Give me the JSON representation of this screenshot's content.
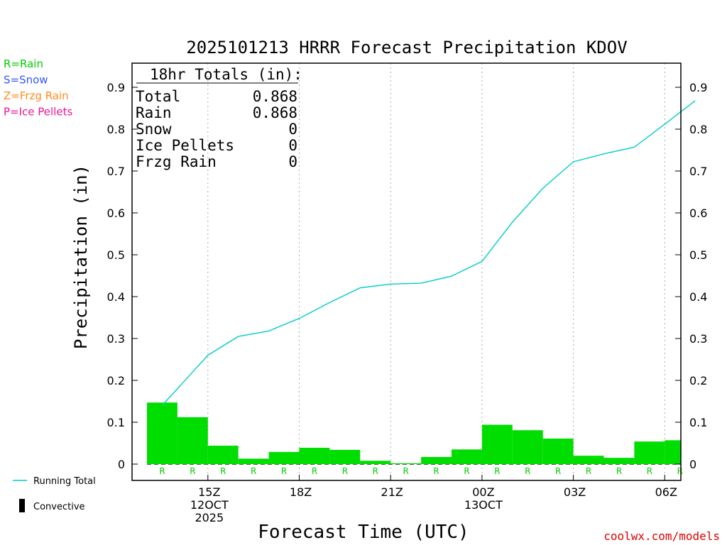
{
  "chart_data": {
    "type": "bar",
    "title": "2025101213 HRRR Forecast Precipitation KDOV",
    "xlabel": "Forecast Time (UTC)",
    "ylabel": "Precipitation (in)",
    "ylim": [
      0,
      0.95
    ],
    "yticks": [
      0,
      0.1,
      0.2,
      0.3,
      0.4,
      0.5,
      0.6,
      0.7,
      0.8,
      0.9
    ],
    "ytick_labels": [
      "0",
      "0.1",
      "0.2",
      "0.3",
      "0.4",
      "0.5",
      "0.6",
      "0.7",
      "0.8",
      "0.9"
    ],
    "x_range": [
      13,
      31
    ],
    "x_ticks": [
      {
        "hour": 15,
        "lines": [
          "15Z",
          "12OCT",
          "2025"
        ]
      },
      {
        "hour": 18,
        "lines": [
          "18Z"
        ]
      },
      {
        "hour": 21,
        "lines": [
          "21Z"
        ]
      },
      {
        "hour": 24,
        "lines": [
          "00Z",
          "13OCT"
        ]
      },
      {
        "hour": 27,
        "lines": [
          "03Z"
        ]
      },
      {
        "hour": 30,
        "lines": [
          "06Z"
        ]
      }
    ],
    "hourly_precip": [
      {
        "start": 13,
        "end": 14,
        "value": 0.147,
        "type": "R"
      },
      {
        "start": 14,
        "end": 15,
        "value": 0.112,
        "type": "R"
      },
      {
        "start": 15,
        "end": 16,
        "value": 0.044,
        "type": "R"
      },
      {
        "start": 16,
        "end": 17,
        "value": 0.013,
        "type": "R"
      },
      {
        "start": 17,
        "end": 18,
        "value": 0.029,
        "type": "R"
      },
      {
        "start": 18,
        "end": 19,
        "value": 0.039,
        "type": "R"
      },
      {
        "start": 19,
        "end": 20,
        "value": 0.034,
        "type": "R"
      },
      {
        "start": 20,
        "end": 21,
        "value": 0.008,
        "type": "R"
      },
      {
        "start": 21,
        "end": 22,
        "value": 0.002,
        "type": "R"
      },
      {
        "start": 22,
        "end": 23,
        "value": 0.017,
        "type": "R"
      },
      {
        "start": 23,
        "end": 24,
        "value": 0.035,
        "type": "R"
      },
      {
        "start": 24,
        "end": 25,
        "value": 0.094,
        "type": "R"
      },
      {
        "start": 25,
        "end": 26,
        "value": 0.081,
        "type": "R"
      },
      {
        "start": 26,
        "end": 27,
        "value": 0.061,
        "type": "R"
      },
      {
        "start": 27,
        "end": 28,
        "value": 0.02,
        "type": "R"
      },
      {
        "start": 28,
        "end": 29,
        "value": 0.015,
        "type": "R"
      },
      {
        "start": 29,
        "end": 30,
        "value": 0.054,
        "type": "R"
      },
      {
        "start": 30,
        "end": 31,
        "value": 0.057,
        "type": "R"
      }
    ],
    "running_total": {
      "name": "Running Total",
      "x": [
        13.5,
        15,
        16,
        17,
        18,
        19,
        20,
        21,
        22,
        23,
        24,
        25,
        26,
        27,
        28,
        29,
        30,
        31
      ],
      "y": [
        0.14,
        0.26,
        0.305,
        0.318,
        0.348,
        0.386,
        0.421,
        0.43,
        0.432,
        0.449,
        0.484,
        0.578,
        0.659,
        0.722,
        0.741,
        0.757,
        0.812,
        0.868
      ]
    },
    "totals_box": {
      "title": "18hr Totals (in):",
      "rows": [
        {
          "label": "Total",
          "value": "0.868"
        },
        {
          "label": "Rain",
          "value": "0.868"
        },
        {
          "label": "Snow",
          "value": "0"
        },
        {
          "label": "Ice Pellets",
          "value": "0"
        },
        {
          "label": "Frzg Rain",
          "value": "0"
        }
      ]
    },
    "type_legend": [
      {
        "text": "R=Rain",
        "color": "#00cc00"
      },
      {
        "text": "S=Snow",
        "color": "#3355ff"
      },
      {
        "text": "Z=Frzg Rain",
        "color": "#ff8c1a"
      },
      {
        "text": "P=Ice Pellets",
        "color": "#ee1493"
      }
    ],
    "legend": {
      "running_total": "Running Total",
      "convective": "Convective"
    },
    "colors": {
      "bar": "#00dd00",
      "line": "#00cccc",
      "rain_marker": "#00cc00",
      "credit": "#dd0000"
    },
    "credit": "coolwx.com/models"
  }
}
